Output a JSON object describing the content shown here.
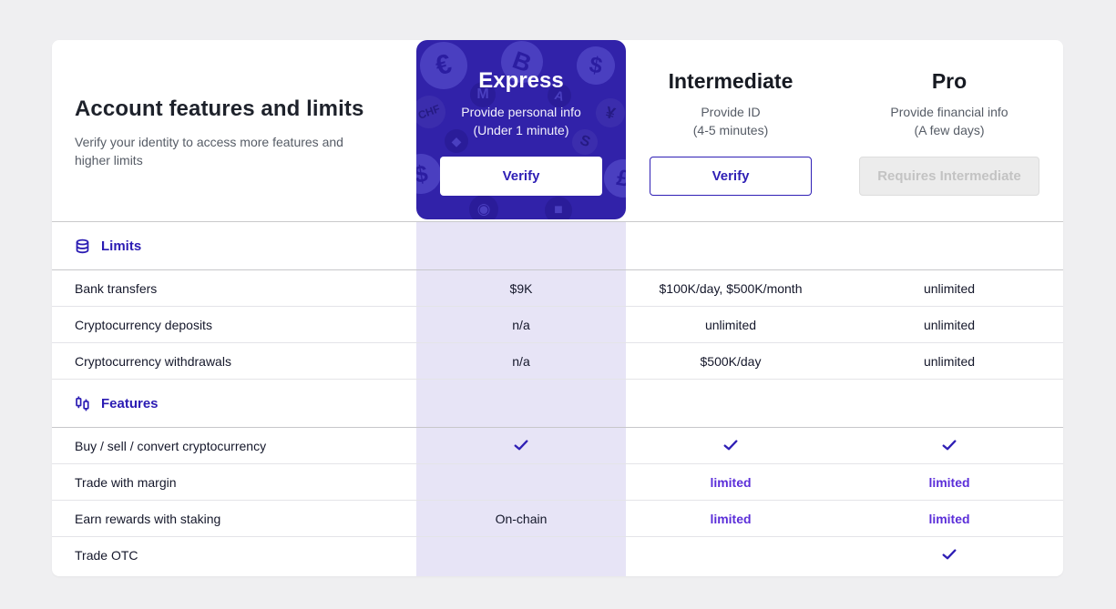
{
  "header": {
    "title": "Account features and limits",
    "subtitle": "Verify your identity to access more features and higher limits"
  },
  "plans": [
    {
      "name": "Express",
      "desc_line1": "Provide personal info",
      "desc_line2": "(Under 1 minute)",
      "button": "Verify"
    },
    {
      "name": "Intermediate",
      "desc_line1": "Provide ID",
      "desc_line2": "(4-5 minutes)",
      "button": "Verify"
    },
    {
      "name": "Pro",
      "desc_line1": "Provide financial info",
      "desc_line2": "(A few days)",
      "button": "Requires Intermediate"
    }
  ],
  "express_badges": [
    {
      "name": "euro-icon",
      "glyph": "€"
    },
    {
      "name": "bitcoin-icon",
      "glyph": "B"
    },
    {
      "name": "dollar-icon",
      "glyph": "$"
    },
    {
      "name": "monero-icon",
      "glyph": "M"
    },
    {
      "name": "algorand-icon",
      "glyph": "A"
    },
    {
      "name": "swiss-franc-icon",
      "glyph": "CHF"
    },
    {
      "name": "yen-icon",
      "glyph": "¥"
    },
    {
      "name": "ethereum-icon",
      "glyph": "◆"
    },
    {
      "name": "coin-icon",
      "glyph": "S"
    },
    {
      "name": "dollar-icon-2",
      "glyph": "$"
    },
    {
      "name": "pound-icon",
      "glyph": "£"
    },
    {
      "name": "cardano-icon",
      "glyph": "◉"
    },
    {
      "name": "usdc-square-icon",
      "glyph": "■"
    }
  ],
  "table": {
    "sections": [
      {
        "label": "Limits",
        "icon": "database-icon",
        "rows": [
          {
            "label": "Bank transfers",
            "cells": [
              {
                "type": "text",
                "value": "$9K"
              },
              {
                "type": "text",
                "value": "$100K/day, $500K/month"
              },
              {
                "type": "text",
                "value": "unlimited"
              }
            ]
          },
          {
            "label": "Cryptocurrency deposits",
            "cells": [
              {
                "type": "text",
                "value": "n/a"
              },
              {
                "type": "text",
                "value": "unlimited"
              },
              {
                "type": "text",
                "value": "unlimited"
              }
            ]
          },
          {
            "label": "Cryptocurrency withdrawals",
            "cells": [
              {
                "type": "text",
                "value": "n/a"
              },
              {
                "type": "text",
                "value": "$500K/day"
              },
              {
                "type": "text",
                "value": "unlimited"
              }
            ]
          }
        ]
      },
      {
        "label": "Features",
        "icon": "candlestick-icon",
        "rows": [
          {
            "label": "Buy / sell / convert cryptocurrency",
            "cells": [
              {
                "type": "check"
              },
              {
                "type": "check"
              },
              {
                "type": "check"
              }
            ]
          },
          {
            "label": "Trade with margin",
            "cells": [
              {
                "type": "empty"
              },
              {
                "type": "limited",
                "value": "limited"
              },
              {
                "type": "limited",
                "value": "limited"
              }
            ]
          },
          {
            "label": "Earn rewards with staking",
            "cells": [
              {
                "type": "text",
                "value": "On-chain"
              },
              {
                "type": "limited",
                "value": "limited"
              },
              {
                "type": "limited",
                "value": "limited"
              }
            ]
          },
          {
            "label": "Trade OTC",
            "cells": [
              {
                "type": "empty"
              },
              {
                "type": "empty"
              },
              {
                "type": "check"
              }
            ]
          }
        ]
      }
    ]
  },
  "colors": {
    "accent_indigo": "#2f1fb5",
    "express_card_bg": "#3122a9",
    "express_column_bg": "#e7e4f6",
    "limited_purple": "#5b2ed9",
    "page_bg": "#efeff1",
    "disabled_text": "#c3c3c3"
  }
}
